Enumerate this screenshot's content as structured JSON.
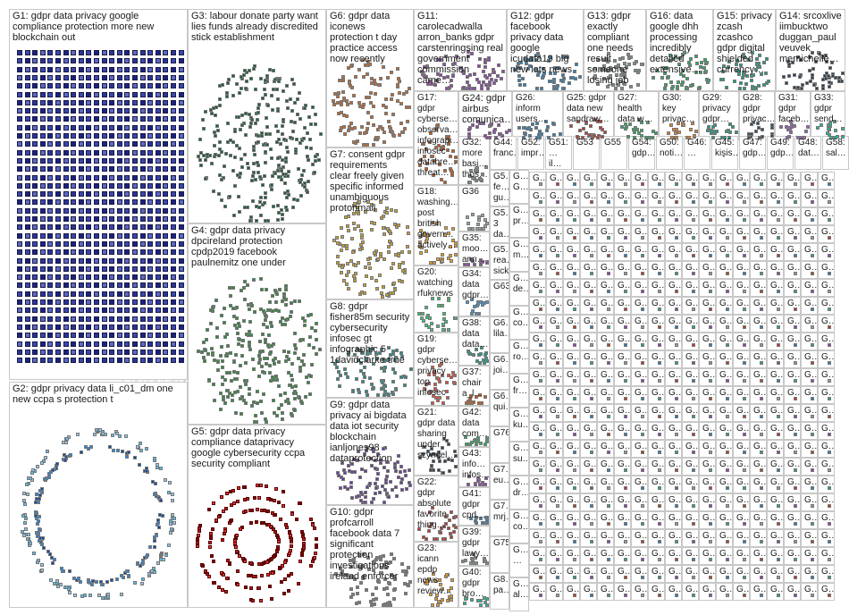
{
  "graph": {
    "groups": [
      {
        "id": "G1",
        "label": "G1: gdpr data privacy google compliance protection more new blockchain out",
        "color": "#3b3b8a"
      },
      {
        "id": "G2",
        "label": "G2: gdpr privacy data li_c01_dm one new ccpa s protection t",
        "color": "#1f77b4"
      },
      {
        "id": "G3",
        "label": "G3: labour donate party want lies funds already discredited stick establishment",
        "color": "#1b5e3b"
      },
      {
        "id": "G4",
        "label": "G4: gdpr data privacy dpcireland protection cpdp2019 facebook paulnemitz one under",
        "color": "#2e8b3a"
      },
      {
        "id": "G5",
        "label": "G5: gdpr data privacy compliance dataprivacy google cybersecurity ccpa security compliant",
        "color": "#a01818"
      },
      {
        "id": "G6",
        "label": "G6: gdpr data iconews protection t day practice access now recently",
        "color": "#c4682a"
      },
      {
        "id": "G7",
        "label": "G7: consent gdpr requirements clear freely given specific informed unambiguous protonmail",
        "color": "#c9a227"
      },
      {
        "id": "G8",
        "label": "G8: gdpr fisher85m security cybersecurity infosec gt infographic 5 1davidclarke true",
        "color": "#2a8c8c"
      },
      {
        "id": "G9",
        "label": "G9: gdpr data privacy ai bigdata data iot security blockchain ianljones98 dataprotection",
        "color": "#6a3d9a"
      },
      {
        "id": "G10",
        "label": "G10: gdpr profcarroll facebook data 7 significant protection investigations ireland enforcer",
        "color": "#7a7a7a"
      },
      {
        "id": "G11",
        "label": "G11: carolecadwalla arron_banks gdpr carstenringsing real government commission came…",
        "color": "#8e44ad"
      },
      {
        "id": "G12",
        "label": "G12: gdpr facebook privacy data google icudata19 big new lots news",
        "color": "#2980b9"
      },
      {
        "id": "G13",
        "label": "G13: gdpr exactly compliant one needs result someone losing job",
        "color": "#7f8c8d"
      },
      {
        "id": "G16",
        "label": "G16: data google dhh processing incredibly detailed extensive…",
        "color": "#27ae60"
      },
      {
        "id": "G15",
        "label": "G15: privacy zcash zcashco gdpr digital shielded currency…",
        "color": "#16a085"
      },
      {
        "id": "G14",
        "label": "G14: srcoxlive iimbucktwo duggan_paul veuvek memichelle…",
        "color": "#2c3e50"
      },
      {
        "id": "G17",
        "label": "G17: gdpr cyberse… observa… infograp… infosec databre… threat…",
        "color": "#d35400"
      },
      {
        "id": "G24",
        "label": "G24: gdpr airbus comunica…",
        "color": "#8e44ad"
      },
      {
        "id": "G26",
        "label": "G26: inform users…",
        "color": "#2980b9"
      },
      {
        "id": "G25",
        "label": "G25: gdpr data new sandraw…",
        "color": "#c0392b"
      },
      {
        "id": "G27",
        "label": "G27: health data w…",
        "color": "#27ae60"
      },
      {
        "id": "G30",
        "label": "G30: key privac…",
        "color": "#e67e22"
      },
      {
        "id": "G29",
        "label": "G29: privacy gdpr…",
        "color": "#16a085"
      },
      {
        "id": "G28",
        "label": "G28: gdpr privac…",
        "color": "#34495e"
      },
      {
        "id": "G31",
        "label": "G31: gdpr faceb…",
        "color": "#9b59b6"
      },
      {
        "id": "G33",
        "label": "G33: gdpr send…",
        "color": "#1abc9c"
      },
      {
        "id": "G18",
        "label": "G18: washing… post british govern… actively…",
        "color": "#f39c12"
      },
      {
        "id": "G32",
        "label": "G32: more basi… thos…",
        "color": "#7f8c8d"
      },
      {
        "id": "G36",
        "label": "G36",
        "color": "#95a5a6"
      },
      {
        "id": "G35",
        "label": "G35: moo… ann…",
        "color": "#8e44ad"
      },
      {
        "id": "G20",
        "label": "G20: watching rfuknews",
        "color": "#2ecc71"
      },
      {
        "id": "G34",
        "label": "G34: data gdpr…",
        "color": "#3498db"
      },
      {
        "id": "G19",
        "label": "G19: gdpr cyberse… privacy top infosec",
        "color": "#e74c3c"
      },
      {
        "id": "G38",
        "label": "G38: data data…",
        "color": "#16a085"
      },
      {
        "id": "G37",
        "label": "G37: chair a_l…",
        "color": "#d35400"
      },
      {
        "id": "G21",
        "label": "G21: gdpr data sharing under szymiel…",
        "color": "#2c3e50"
      },
      {
        "id": "G42",
        "label": "G42: data com…",
        "color": "#27ae60"
      },
      {
        "id": "G43",
        "label": "G43: info… infos…",
        "color": "#8e44ad"
      },
      {
        "id": "G22",
        "label": "G22: gdpr absolute favorite thing…",
        "color": "#c0392b"
      },
      {
        "id": "G41",
        "label": "G41: gdpr cpd…",
        "color": "#2980b9"
      },
      {
        "id": "G39",
        "label": "G39: gdpr lawy…",
        "color": "#7f8c8d"
      },
      {
        "id": "G23",
        "label": "G23: icann epdp news review…",
        "color": "#f39c12"
      },
      {
        "id": "G40",
        "label": "G40: gdpr bro…",
        "color": "#1abc9c"
      }
    ],
    "small_groups_row1": [
      "G44: franc…",
      "G52: impr…",
      "G51: …il…",
      "G53",
      "G55",
      "G54: gdp…",
      "G50: noti…",
      "G46: …",
      "G45: kişis…",
      "G47: gdp…",
      "G49: gdp…",
      "G48: dat…",
      "G58: sal…"
    ],
    "small_groups_col": [
      "G5… fe… gu…",
      "G5… 3 da…",
      "G5… rea… sick",
      "G63",
      "G6… lila…",
      "G6… joi…",
      "G6… qui…",
      "G76",
      "G7… eu…",
      "G7… mrj…",
      "G75",
      "G8… pa…"
    ],
    "small_groups_col2": [
      "G… G…",
      "G… pr…",
      "G… m…",
      "G… de…",
      "G… co…",
      "G… ro…",
      "G… fr…",
      "G… ku…",
      "G… su…",
      "G… dr…",
      "G… co…",
      "G… …",
      "G… al…"
    ],
    "tiny_label": "G…"
  }
}
